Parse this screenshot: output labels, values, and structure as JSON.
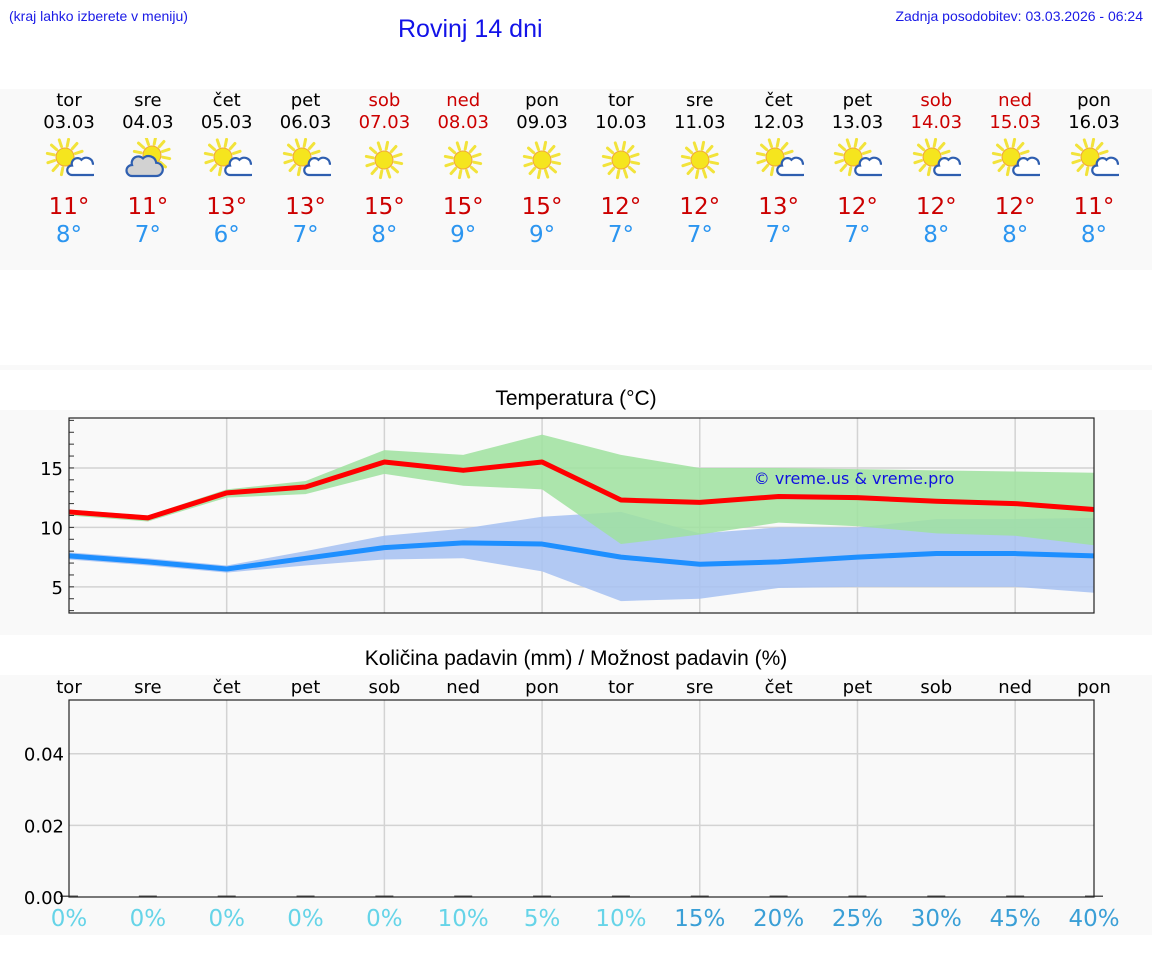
{
  "header": {
    "menu_hint": "(kraj lahko izberete v meniju)",
    "title": "Rovinj 14 dni",
    "last_update": "Zadnja posodobitev: 03.03.2026 - 06:24"
  },
  "colors": {
    "header_text": "#1a1ae6",
    "weekday_text": "#000000",
    "weekend_text": "#cc0000",
    "max_temp": "#cc0000",
    "min_temp": "#2b95f0",
    "max_line": "#ff0000",
    "max_band": "#aee8ae",
    "min_line": "#1e8fff",
    "min_band": "#aec7f2",
    "precip_low": "#66d4e8",
    "precip_high": "#3a9fd6"
  },
  "forecast": {
    "days": [
      {
        "weekday": "tor",
        "date": "03.03",
        "weekend": false,
        "icon": "sun-cloud-icon",
        "max": "11°",
        "min": "8°"
      },
      {
        "weekday": "sre",
        "date": "04.03",
        "weekend": false,
        "icon": "cloudy-sun-icon",
        "max": "11°",
        "min": "7°"
      },
      {
        "weekday": "čet",
        "date": "05.03",
        "weekend": false,
        "icon": "sun-cloud-icon",
        "max": "13°",
        "min": "6°"
      },
      {
        "weekday": "pet",
        "date": "06.03",
        "weekend": false,
        "icon": "sun-cloud-icon",
        "max": "13°",
        "min": "7°"
      },
      {
        "weekday": "sob",
        "date": "07.03",
        "weekend": true,
        "icon": "sun-icon",
        "max": "15°",
        "min": "8°"
      },
      {
        "weekday": "ned",
        "date": "08.03",
        "weekend": true,
        "icon": "sun-icon",
        "max": "15°",
        "min": "9°"
      },
      {
        "weekday": "pon",
        "date": "09.03",
        "weekend": false,
        "icon": "sun-icon",
        "max": "15°",
        "min": "9°"
      },
      {
        "weekday": "tor",
        "date": "10.03",
        "weekend": false,
        "icon": "sun-icon",
        "max": "12°",
        "min": "7°"
      },
      {
        "weekday": "sre",
        "date": "11.03",
        "weekend": false,
        "icon": "sun-icon",
        "max": "12°",
        "min": "7°"
      },
      {
        "weekday": "čet",
        "date": "12.03",
        "weekend": false,
        "icon": "sun-cloud-icon",
        "max": "13°",
        "min": "7°"
      },
      {
        "weekday": "pet",
        "date": "13.03",
        "weekend": false,
        "icon": "sun-cloud-icon",
        "max": "12°",
        "min": "7°"
      },
      {
        "weekday": "sob",
        "date": "14.03",
        "weekend": true,
        "icon": "sun-cloud-icon",
        "max": "12°",
        "min": "8°"
      },
      {
        "weekday": "ned",
        "date": "15.03",
        "weekend": true,
        "icon": "sun-cloud-icon",
        "max": "12°",
        "min": "8°"
      },
      {
        "weekday": "pon",
        "date": "16.03",
        "weekend": false,
        "icon": "sun-cloud-icon",
        "max": "11°",
        "min": "8°"
      }
    ]
  },
  "chart_data": [
    {
      "type": "line",
      "title": "Temperatura (°C)",
      "xlabel": "",
      "ylabel": "",
      "x": [
        "03.03",
        "04.03",
        "05.03",
        "06.03",
        "07.03",
        "08.03",
        "09.03",
        "10.03",
        "11.03",
        "12.03",
        "13.03",
        "14.03",
        "15.03",
        "16.03"
      ],
      "ylim": [
        2.8,
        19.2
      ],
      "yticks": [
        5,
        10,
        15
      ],
      "grid": true,
      "watermark": "© vreme.us & vreme.pro",
      "series": [
        {
          "name": "max",
          "color": "#ff0000",
          "values": [
            11.3,
            10.8,
            12.9,
            13.4,
            15.5,
            14.8,
            15.5,
            12.3,
            12.1,
            12.6,
            12.5,
            12.2,
            12.0,
            11.5
          ]
        },
        {
          "name": "max_range_upper",
          "color": "#aee8ae",
          "values": [
            11.5,
            11.0,
            13.2,
            13.9,
            16.5,
            16.1,
            17.8,
            16.1,
            15.0,
            15.0,
            14.9,
            14.8,
            14.7,
            14.6
          ]
        },
        {
          "name": "max_range_lower",
          "color": "#aee8ae",
          "values": [
            11.0,
            10.5,
            12.5,
            12.8,
            14.5,
            13.5,
            13.2,
            8.6,
            9.4,
            10.4,
            10.1,
            9.5,
            9.3,
            8.5
          ]
        },
        {
          "name": "min",
          "color": "#1e8fff",
          "values": [
            7.6,
            7.1,
            6.5,
            7.4,
            8.3,
            8.7,
            8.6,
            7.5,
            6.9,
            7.1,
            7.5,
            7.8,
            7.8,
            7.6
          ]
        },
        {
          "name": "min_range_upper",
          "color": "#aec7f2",
          "values": [
            7.9,
            7.4,
            6.8,
            8.0,
            9.3,
            9.9,
            10.9,
            11.3,
            9.5,
            10.0,
            10.0,
            10.7,
            10.7,
            10.8
          ]
        },
        {
          "name": "min_range_lower",
          "color": "#aec7f2",
          "values": [
            7.3,
            6.8,
            6.2,
            6.8,
            7.3,
            7.4,
            6.3,
            3.8,
            4.0,
            4.9,
            5.0,
            5.0,
            5.0,
            4.5
          ]
        }
      ]
    },
    {
      "type": "bar",
      "title": "Količina padavin (mm) / Možnost padavin (%)",
      "categories": [
        "tor",
        "sre",
        "čet",
        "pet",
        "sob",
        "ned",
        "pon",
        "tor",
        "sre",
        "čet",
        "pet",
        "sob",
        "ned",
        "pon"
      ],
      "ylim": [
        0,
        0.055
      ],
      "yticks": [
        "0.00",
        "0.02",
        "0.04"
      ],
      "grid": true,
      "series": [
        {
          "name": "Količina padavin (mm)",
          "values": [
            0,
            0,
            0,
            0,
            0,
            0,
            0,
            0,
            0,
            0,
            0,
            0,
            0,
            0
          ]
        },
        {
          "name": "Možnost padavin (%)",
          "values": [
            0,
            0,
            0,
            0,
            0,
            10,
            5,
            10,
            15,
            20,
            25,
            30,
            45,
            40
          ]
        }
      ],
      "probability_labels": [
        "0%",
        "0%",
        "0%",
        "0%",
        "0%",
        "10%",
        "5%",
        "10%",
        "15%",
        "20%",
        "25%",
        "30%",
        "45%",
        "40%"
      ]
    }
  ],
  "temp_chart": {
    "title": "Temperatura (°C)",
    "watermark": "© vreme.us & vreme.pro",
    "ytick_labels": [
      "15",
      "10",
      "5"
    ]
  },
  "precip_chart": {
    "title": "Količina padavin (mm) / Možnost padavin (%)",
    "ytick_labels": [
      "0.04",
      "0.02",
      "0.00"
    ]
  }
}
